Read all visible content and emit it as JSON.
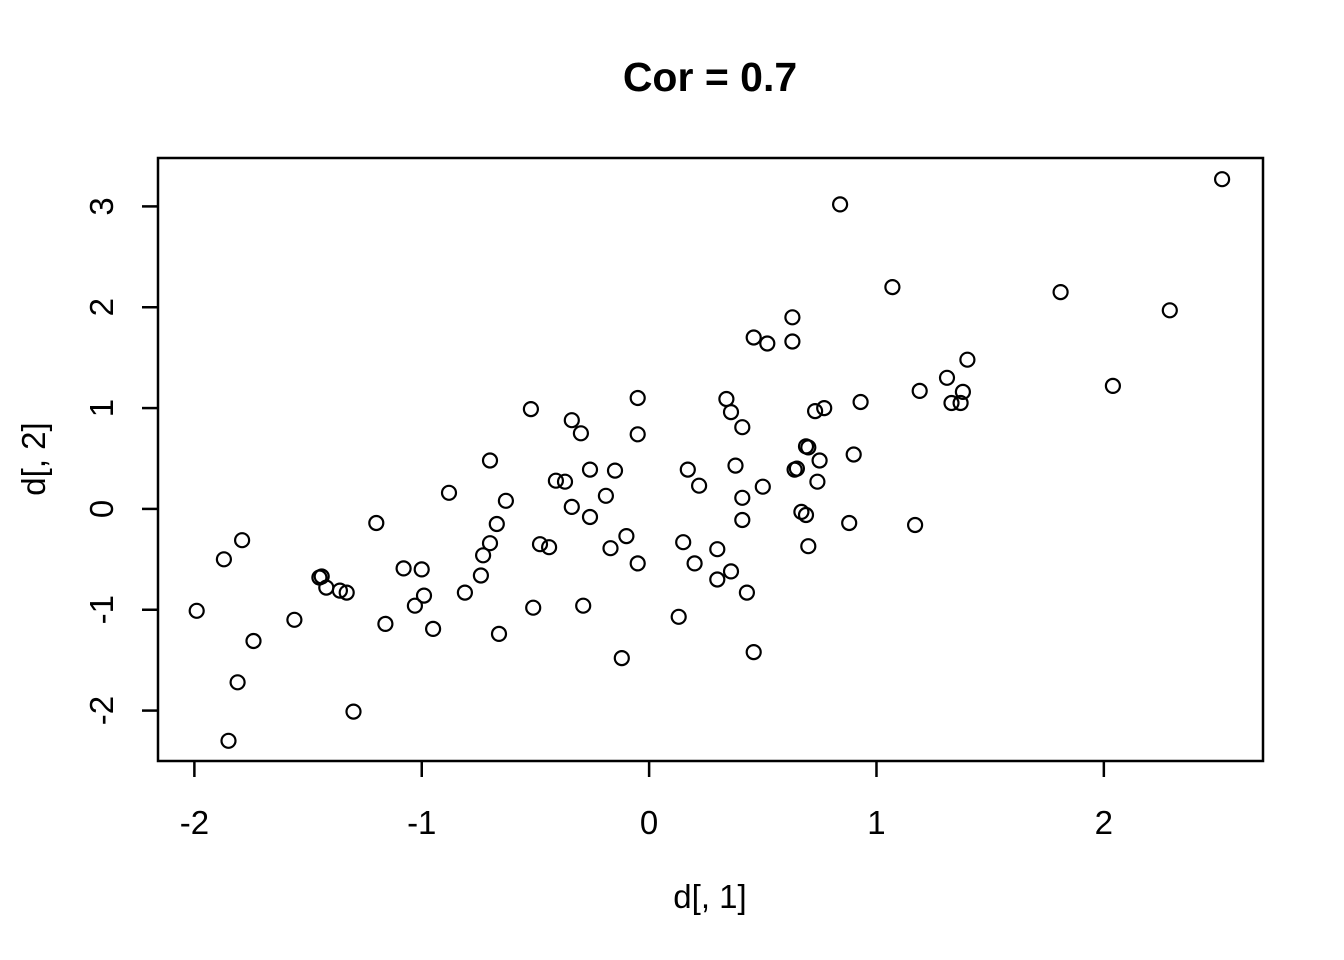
{
  "figure": {
    "title": "Cor = 0.7",
    "xlabel": "d[, 1]",
    "ylabel": "d[, 2]"
  },
  "chart_data": {
    "type": "scatter",
    "title": "Cor = 0.7",
    "xlabel": "d[, 1]",
    "ylabel": "d[, 2]",
    "x_ticks": [
      -2,
      -1,
      0,
      1,
      2
    ],
    "y_ticks": [
      -2,
      -1,
      0,
      1,
      2,
      3
    ],
    "xlim": [
      -2.16,
      2.7
    ],
    "ylim": [
      -2.5,
      3.48
    ],
    "grid": false,
    "legend": "none",
    "marker": "open-circle",
    "marker_color": "#000000",
    "background_color": "#ffffff",
    "points": [
      [
        0.84,
        3.02
      ],
      [
        1.07,
        2.2
      ],
      [
        0.63,
        1.9
      ],
      [
        0.46,
        1.7
      ],
      [
        0.52,
        1.64
      ],
      [
        0.63,
        1.66
      ],
      [
        2.52,
        3.27
      ],
      [
        1.81,
        2.15
      ],
      [
        2.29,
        1.97
      ],
      [
        1.4,
        1.48
      ],
      [
        1.31,
        1.3
      ],
      [
        1.19,
        1.17
      ],
      [
        1.38,
        1.16
      ],
      [
        1.33,
        1.05
      ],
      [
        1.37,
        1.05
      ],
      [
        2.04,
        1.22
      ],
      [
        1.17,
        -0.16
      ],
      [
        -0.52,
        0.99
      ],
      [
        -0.34,
        0.88
      ],
      [
        -0.3,
        0.75
      ],
      [
        -0.05,
        1.1
      ],
      [
        -0.05,
        0.74
      ],
      [
        0.34,
        1.09
      ],
      [
        0.36,
        0.96
      ],
      [
        0.41,
        0.81
      ],
      [
        0.73,
        0.97
      ],
      [
        0.77,
        1.0
      ],
      [
        0.93,
        1.06
      ],
      [
        0.7,
        0.61
      ],
      [
        0.69,
        0.62
      ],
      [
        0.75,
        0.48
      ],
      [
        0.9,
        0.54
      ],
      [
        0.65,
        0.4
      ],
      [
        0.64,
        0.39
      ],
      [
        0.74,
        0.27
      ],
      [
        0.17,
        0.39
      ],
      [
        0.22,
        0.23
      ],
      [
        0.38,
        0.43
      ],
      [
        0.5,
        0.22
      ],
      [
        0.41,
        0.11
      ],
      [
        -0.26,
        0.39
      ],
      [
        -0.15,
        0.38
      ],
      [
        -0.41,
        0.28
      ],
      [
        -0.37,
        0.27
      ],
      [
        -0.19,
        0.13
      ],
      [
        -0.34,
        0.02
      ],
      [
        -0.26,
        -0.08
      ],
      [
        0.67,
        -0.03
      ],
      [
        0.69,
        -0.06
      ],
      [
        0.88,
        -0.14
      ],
      [
        -0.88,
        0.16
      ],
      [
        -0.7,
        0.48
      ],
      [
        -0.63,
        0.08
      ],
      [
        -0.67,
        -0.15
      ],
      [
        -0.7,
        -0.34
      ],
      [
        -0.73,
        -0.46
      ],
      [
        -1.2,
        -0.14
      ],
      [
        -1.79,
        -0.31
      ],
      [
        -1.87,
        -0.5
      ],
      [
        -0.48,
        -0.35
      ],
      [
        -0.44,
        -0.38
      ],
      [
        -0.1,
        -0.27
      ],
      [
        -0.17,
        -0.39
      ],
      [
        -0.05,
        -0.54
      ],
      [
        0.15,
        -0.33
      ],
      [
        0.2,
        -0.54
      ],
      [
        0.3,
        -0.4
      ],
      [
        0.41,
        -0.11
      ],
      [
        0.7,
        -0.37
      ],
      [
        0.3,
        -0.7
      ],
      [
        0.36,
        -0.62
      ],
      [
        0.43,
        -0.83
      ],
      [
        -0.29,
        -0.96
      ],
      [
        -0.51,
        -0.98
      ],
      [
        0.13,
        -1.07
      ],
      [
        -0.12,
        -1.48
      ],
      [
        0.46,
        -1.42
      ],
      [
        -1.44,
        -0.67
      ],
      [
        -1.45,
        -0.68
      ],
      [
        -1.42,
        -0.78
      ],
      [
        -1.36,
        -0.81
      ],
      [
        -1.33,
        -0.83
      ],
      [
        -1.08,
        -0.59
      ],
      [
        -1.0,
        -0.6
      ],
      [
        -0.74,
        -0.66
      ],
      [
        -0.81,
        -0.83
      ],
      [
        -0.99,
        -0.86
      ],
      [
        -1.03,
        -0.96
      ],
      [
        -1.16,
        -1.14
      ],
      [
        -0.95,
        -1.19
      ],
      [
        -0.66,
        -1.24
      ],
      [
        -1.99,
        -1.01
      ],
      [
        -1.56,
        -1.1
      ],
      [
        -1.74,
        -1.31
      ],
      [
        -1.81,
        -1.72
      ],
      [
        -1.85,
        -2.3
      ],
      [
        -1.3,
        -2.01
      ]
    ]
  }
}
